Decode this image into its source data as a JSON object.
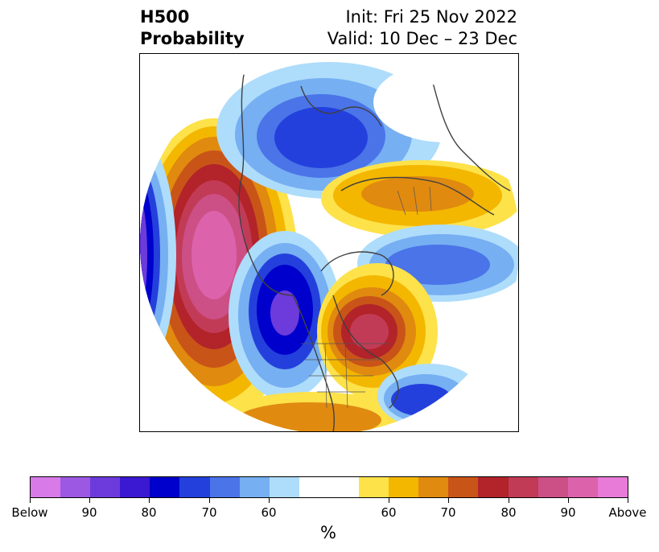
{
  "title": {
    "left_line1": "H500",
    "left_line2": "Probability",
    "right_line1": "Init: Fri 25 Nov 2022",
    "right_line2": "Valid: 10 Dec – 23 Dec"
  },
  "colorbar": {
    "unit": "%",
    "colors": [
      "#d87ae8",
      "#9c58e2",
      "#6d3bdb",
      "#3b18d2",
      "#0000cc",
      "#2440dc",
      "#4a74e8",
      "#76aff2",
      "#aedcfb",
      "#ffffff",
      "#ffffff",
      "#fde24a",
      "#f4b700",
      "#e08a10",
      "#c95418",
      "#b2232a",
      "#c23b56",
      "#cc4f86",
      "#dc62ab",
      "#e87ad8"
    ],
    "tick_labels": [
      "Below",
      "90",
      "80",
      "70",
      "60",
      "60",
      "70",
      "80",
      "90",
      "Above"
    ]
  },
  "map": {
    "description_colors": {
      "below_extreme": "#6d3bdb",
      "above_extreme": "#dc62ab"
    }
  }
}
